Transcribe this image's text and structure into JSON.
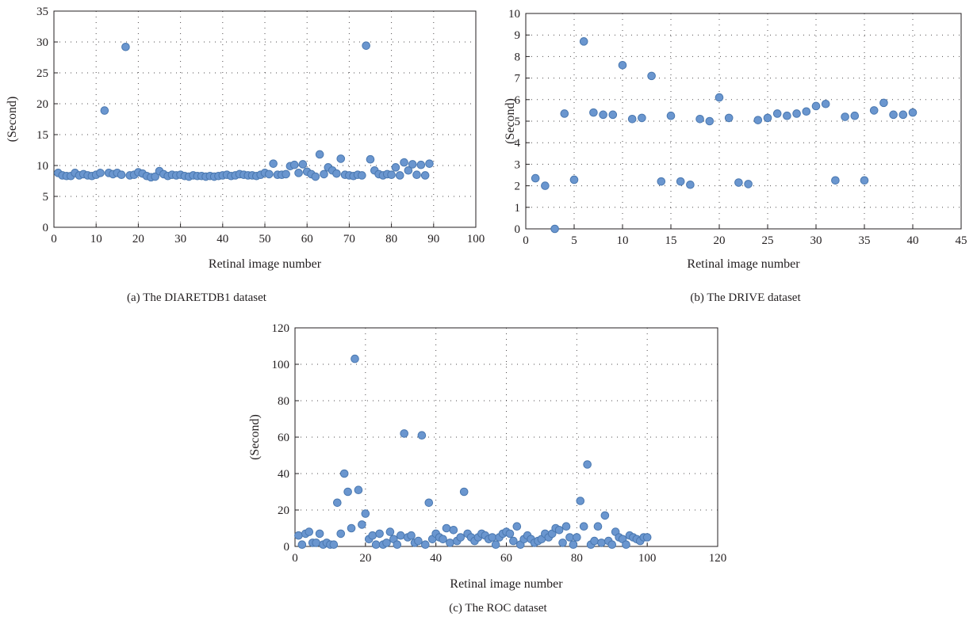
{
  "colors": {
    "marker": "#6a96cf",
    "marker_edge": "#4a78b0",
    "axis": "#231f20"
  },
  "chart_data": [
    {
      "type": "scatter",
      "caption": "(a)  The DIARETDB1 dataset",
      "xlabel": "Retinal image number",
      "ylabel": "(Second)",
      "xlim": [
        0,
        100
      ],
      "ylim": [
        0,
        35
      ],
      "xticks": [
        0,
        10,
        20,
        30,
        40,
        50,
        60,
        70,
        80,
        90,
        100
      ],
      "yticks": [
        0,
        5,
        10,
        15,
        20,
        25,
        30,
        35
      ],
      "grid": true,
      "x": [
        1,
        2,
        3,
        4,
        5,
        6,
        7,
        8,
        9,
        10,
        11,
        12,
        13,
        14,
        15,
        16,
        17,
        18,
        19,
        20,
        21,
        22,
        23,
        24,
        25,
        26,
        27,
        28,
        29,
        30,
        31,
        32,
        33,
        34,
        35,
        36,
        37,
        38,
        39,
        40,
        41,
        42,
        43,
        44,
        45,
        46,
        47,
        48,
        49,
        50,
        51,
        52,
        53,
        54,
        55,
        56,
        57,
        58,
        59,
        60,
        61,
        62,
        63,
        64,
        65,
        66,
        67,
        68,
        69,
        70,
        71,
        72,
        73,
        74,
        75,
        76,
        77,
        78,
        79,
        80,
        81,
        82,
        83,
        84,
        85,
        86,
        87,
        88,
        89
      ],
      "y": [
        8.8,
        8.4,
        8.3,
        8.3,
        8.8,
        8.4,
        8.6,
        8.4,
        8.3,
        8.5,
        8.8,
        18.9,
        8.8,
        8.6,
        8.8,
        8.5,
        29.2,
        8.4,
        8.5,
        8.9,
        8.7,
        8.3,
        8.1,
        8.2,
        9.1,
        8.6,
        8.3,
        8.5,
        8.4,
        8.5,
        8.3,
        8.2,
        8.4,
        8.3,
        8.3,
        8.2,
        8.3,
        8.2,
        8.3,
        8.4,
        8.5,
        8.3,
        8.4,
        8.6,
        8.5,
        8.4,
        8.4,
        8.3,
        8.5,
        8.8,
        8.6,
        10.3,
        8.5,
        8.5,
        8.6,
        9.9,
        10.1,
        8.8,
        10.2,
        9.0,
        8.6,
        8.2,
        11.8,
        8.6,
        9.7,
        9.2,
        8.7,
        11.1,
        8.5,
        8.4,
        8.3,
        8.5,
        8.4,
        29.4,
        11.0,
        9.2,
        8.6,
        8.4,
        8.6,
        8.5,
        9.7,
        8.4,
        10.5,
        9.2,
        10.2,
        8.5,
        10.1,
        8.4,
        10.3
      ]
    },
    {
      "type": "scatter",
      "caption": "(b)  The DRIVE dataset",
      "xlabel": "Retinal image number",
      "ylabel": "(Second)",
      "xlim": [
        0,
        45
      ],
      "ylim": [
        0,
        10
      ],
      "xticks": [
        0,
        5,
        10,
        15,
        20,
        25,
        30,
        35,
        40,
        45
      ],
      "yticks": [
        0,
        1,
        2,
        3,
        4,
        5,
        6,
        7,
        8,
        9,
        10
      ],
      "grid": true,
      "x": [
        1,
        2,
        3,
        4,
        5,
        6,
        7,
        8,
        9,
        10,
        11,
        12,
        13,
        14,
        15,
        16,
        17,
        18,
        19,
        20,
        21,
        22,
        23,
        24,
        25,
        26,
        27,
        28,
        29,
        30,
        31,
        32,
        33,
        34,
        35,
        36,
        37,
        38,
        39,
        40
      ],
      "y": [
        2.35,
        2.0,
        0.0,
        5.35,
        2.28,
        8.7,
        5.4,
        5.3,
        5.3,
        7.6,
        5.1,
        5.15,
        7.1,
        2.2,
        5.25,
        2.2,
        2.05,
        5.1,
        5.0,
        6.1,
        5.15,
        2.15,
        2.08,
        5.05,
        5.15,
        5.35,
        5.25,
        5.35,
        5.45,
        5.7,
        5.8,
        2.25,
        5.2,
        5.25,
        2.25,
        5.5,
        5.85,
        5.3,
        5.3,
        5.4
      ]
    },
    {
      "type": "scatter",
      "caption": "(c)  The ROC dataset",
      "xlabel": "Retinal image number",
      "ylabel": "(Second)",
      "xlim": [
        0,
        120
      ],
      "ylim": [
        0,
        120
      ],
      "xticks": [
        0,
        20,
        40,
        60,
        80,
        100,
        120
      ],
      "yticks": [
        0,
        20,
        40,
        60,
        80,
        100,
        120
      ],
      "grid": true,
      "x": [
        1,
        2,
        3,
        4,
        5,
        6,
        7,
        8,
        9,
        10,
        11,
        12,
        13,
        14,
        15,
        16,
        17,
        18,
        19,
        20,
        21,
        22,
        23,
        24,
        25,
        26,
        27,
        28,
        29,
        30,
        31,
        32,
        33,
        34,
        35,
        36,
        37,
        38,
        39,
        40,
        41,
        42,
        43,
        44,
        45,
        46,
        47,
        48,
        49,
        50,
        51,
        52,
        53,
        54,
        55,
        56,
        57,
        58,
        59,
        60,
        61,
        62,
        63,
        64,
        65,
        66,
        67,
        68,
        69,
        70,
        71,
        72,
        73,
        74,
        75,
        76,
        77,
        78,
        79,
        80,
        81,
        82,
        83,
        84,
        85,
        86,
        87,
        88,
        89,
        90,
        91,
        92,
        93,
        94,
        95,
        96,
        97,
        98,
        99,
        100
      ],
      "y": [
        6,
        1,
        7,
        8,
        2,
        2,
        7,
        1,
        2,
        1,
        1,
        24,
        7,
        40,
        30,
        10,
        103,
        31,
        12,
        18,
        4,
        6,
        1,
        7,
        1,
        2,
        8,
        4,
        1,
        6,
        62,
        5,
        6,
        2,
        3,
        61,
        1,
        24,
        4,
        7,
        5,
        4,
        10,
        2,
        9,
        3,
        5,
        30,
        7,
        5,
        3,
        5,
        7,
        6,
        4,
        5,
        1,
        5,
        7,
        8,
        7,
        3,
        11,
        1,
        4,
        6,
        4,
        2,
        3,
        4,
        7,
        5,
        7,
        10,
        9,
        2,
        11,
        5,
        1,
        5,
        25,
        11,
        45,
        1,
        3,
        11,
        2,
        17,
        3,
        1,
        8,
        5,
        4,
        1,
        6,
        5,
        4,
        3,
        5,
        5
      ]
    }
  ]
}
